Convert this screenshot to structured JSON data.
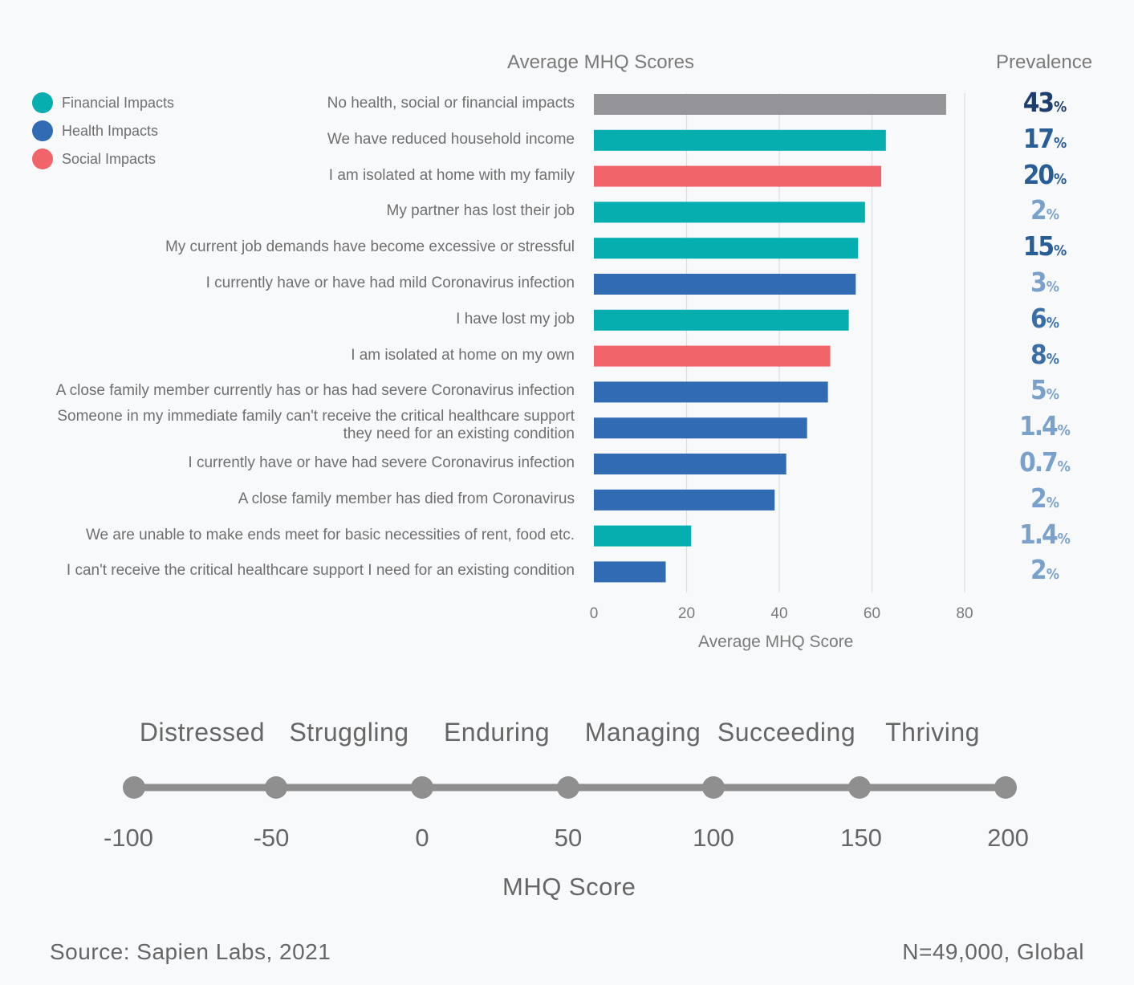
{
  "chart_data": {
    "type": "bar",
    "orientation": "horizontal",
    "title": "Average MHQ Scores",
    "xlabel": "Average MHQ Score",
    "xlim": [
      0,
      80
    ],
    "xticks": [
      0,
      20,
      40,
      60,
      80
    ],
    "grid": true,
    "legend": {
      "placement": "top-left",
      "entries": [
        {
          "name": "Financial Impacts",
          "color": "#06aeb0"
        },
        {
          "name": "Health Impacts",
          "color": "#306bb3"
        },
        {
          "name": "Social Impacts",
          "color": "#f1646a"
        }
      ]
    },
    "prevalence_header": "Prevalence",
    "categories": [
      "No health, social or financial impacts",
      "We have reduced household income",
      "I am isolated at home with my family",
      "My partner has lost their job",
      "My current job demands have become excessive or stressful",
      "I currently have or have had mild Coronavirus infection",
      "I have lost my job",
      "I am isolated at home on my own",
      "A close family member currently has or has had severe Coronavirus infection",
      "Someone in my immediate family can't receive the critical healthcare support they need for an existing condition",
      "I currently have or have had severe Coronavirus infection",
      "A close family member has died from Coronavirus",
      "We are unable to make ends meet for basic necessities of rent, food etc.",
      "I can't receive the critical healthcare support I need for an existing condition"
    ],
    "label_lines": [
      [
        "No health, social or financial impacts"
      ],
      [
        "We have reduced household income"
      ],
      [
        "I am isolated at home with my family"
      ],
      [
        "My partner has lost their job"
      ],
      [
        "My current job demands have become excessive or stressful"
      ],
      [
        "I currently have or have had mild Coronavirus infection"
      ],
      [
        "I have lost my job"
      ],
      [
        "I am isolated at home on my own"
      ],
      [
        "A close family member currently has or has had severe Coronavirus infection"
      ],
      [
        "Someone in my immediate family can't receive the critical healthcare support",
        "they need for an existing condition"
      ],
      [
        "I currently have or have had severe Coronavirus infection"
      ],
      [
        "A close family member has died from Coronavirus"
      ],
      [
        "We are unable to make ends meet for basic necessities of rent, food etc."
      ],
      [
        "I can't receive the critical healthcare support I need for an existing condition"
      ]
    ],
    "values": [
      76,
      63,
      62,
      58.5,
      57,
      56.5,
      55,
      51,
      50.5,
      46,
      41.5,
      39,
      21,
      15.5
    ],
    "impact_type": [
      "None",
      "Financial",
      "Social",
      "Financial",
      "Financial",
      "Health",
      "Financial",
      "Social",
      "Health",
      "Health",
      "Health",
      "Health",
      "Financial",
      "Health"
    ],
    "bar_colors": [
      "#949499",
      "#06aeb0",
      "#f1646a",
      "#06aeb0",
      "#06aeb0",
      "#306bb3",
      "#06aeb0",
      "#f1646a",
      "#306bb3",
      "#306bb3",
      "#306bb3",
      "#306bb3",
      "#06aeb0",
      "#306bb3"
    ],
    "prevalence_values": [
      "43",
      "17",
      "20",
      "2",
      "15",
      "3",
      "6",
      "8",
      "5",
      "1.4",
      "0.7",
      "2",
      "1.4",
      "2"
    ],
    "prevalence_unit": "%",
    "prevalence_colors": [
      "#1d3d6e",
      "#285d96",
      "#285d96",
      "#7aa1cc",
      "#285d96",
      "#7aa1cc",
      "#3c6fa8",
      "#3c6fa8",
      "#7aa1cc",
      "#7aa1cc",
      "#7aa1cc",
      "#7aa1cc",
      "#7aa1cc",
      "#7aa1cc"
    ]
  },
  "scale": {
    "categories": [
      "Distressed",
      "Struggling",
      "Enduring",
      "Managing",
      "Succeeding",
      "Thriving"
    ],
    "ticks": [
      "-100",
      "-50",
      "0",
      "50",
      "100",
      "150",
      "200"
    ],
    "label": "MHQ Score",
    "line_color": "#8f8f8f"
  },
  "footer": {
    "source": "Source: Sapien Labs, 2021",
    "sample": "N=49,000, Global"
  }
}
